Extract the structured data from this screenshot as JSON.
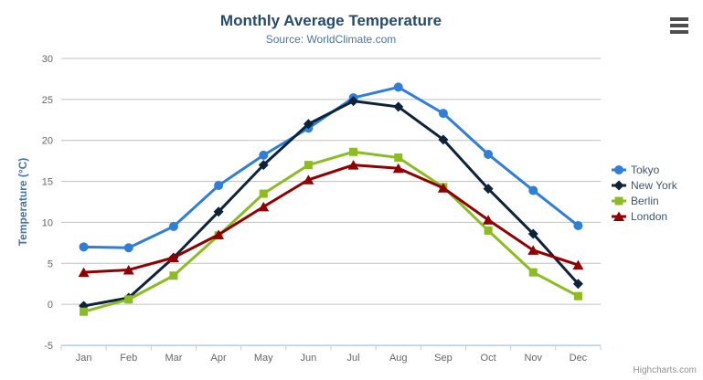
{
  "header": {
    "title": "Monthly Average Temperature",
    "subtitle": "Source: WorldClimate.com"
  },
  "toolbar": {
    "export_icon": "hamburger-icon"
  },
  "credits": {
    "label": "Highcharts.com"
  },
  "chart_data": {
    "type": "line",
    "title": "Monthly Average Temperature",
    "subtitle": "Source: WorldClimate.com",
    "xlabel": "",
    "ylabel": "Temperature (°C)",
    "categories": [
      "Jan",
      "Feb",
      "Mar",
      "Apr",
      "May",
      "Jun",
      "Jul",
      "Aug",
      "Sep",
      "Oct",
      "Nov",
      "Dec"
    ],
    "ylim": [
      -5,
      30
    ],
    "ytick_step": 5,
    "grid": true,
    "legend_position": "right",
    "series": [
      {
        "name": "Tokyo",
        "color": "#2f7ed8",
        "marker": "circle",
        "values": [
          7.0,
          6.9,
          9.5,
          14.5,
          18.2,
          21.5,
          25.2,
          26.5,
          23.3,
          18.3,
          13.9,
          9.6
        ]
      },
      {
        "name": "New York",
        "color": "#0d233a",
        "marker": "diamond",
        "values": [
          -0.2,
          0.8,
          5.7,
          11.3,
          17.0,
          22.0,
          24.8,
          24.1,
          20.1,
          14.1,
          8.6,
          2.5
        ]
      },
      {
        "name": "Berlin",
        "color": "#8bbc21",
        "marker": "square",
        "values": [
          -0.9,
          0.6,
          3.5,
          8.4,
          13.5,
          17.0,
          18.6,
          17.9,
          14.3,
          9.0,
          3.9,
          1.0
        ]
      },
      {
        "name": "London",
        "color": "#910000",
        "marker": "triangle",
        "values": [
          3.9,
          4.2,
          5.7,
          8.5,
          11.9,
          15.2,
          17.0,
          16.6,
          14.2,
          10.3,
          6.6,
          4.8
        ]
      }
    ]
  },
  "theme": {
    "title_color": "#274b6d",
    "subtitle_color": "#4d759e",
    "axis_label_color": "#666666",
    "axis_title_color": "#4572a7",
    "grid_color": "#c0c0c0",
    "axis_line_color": "#c0d0e0",
    "legend_text_color": "#3e576f",
    "credits_color": "#909090",
    "background": "#ffffff"
  }
}
